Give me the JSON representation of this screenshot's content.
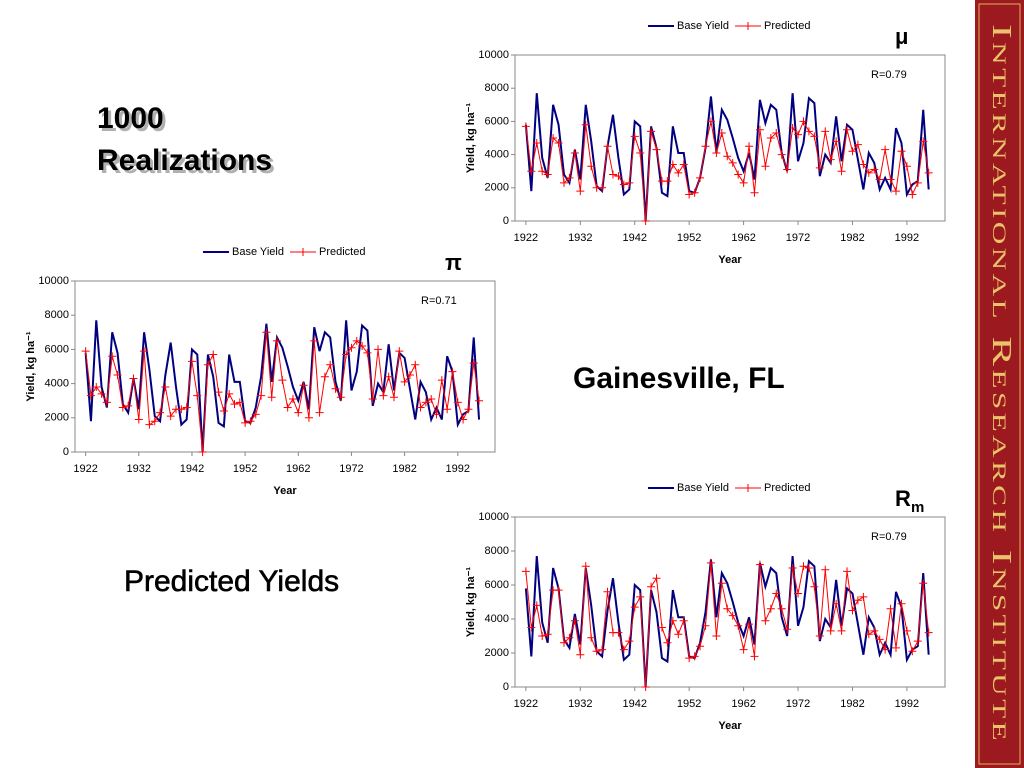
{
  "slide": {
    "heading": "1000 Realizations",
    "location": "Gainesville, FL",
    "caption": "Predicted Yields",
    "sidebar": "International Research Institute"
  },
  "chart_data": [
    {
      "type": "line",
      "symbol": "μ",
      "annotation": "R=0.79",
      "xlabel": "Year",
      "ylabel": "Yield, kg ha⁻¹",
      "xlim": [
        1920,
        1999
      ],
      "xticks": [
        1922,
        1932,
        1942,
        1952,
        1962,
        1972,
        1982,
        1992
      ],
      "ylim": [
        0,
        10000
      ],
      "yticks": [
        0,
        2000,
        4000,
        6000,
        8000,
        10000
      ],
      "x": [
        1922,
        1923,
        1924,
        1925,
        1926,
        1927,
        1928,
        1929,
        1930,
        1931,
        1932,
        1933,
        1934,
        1935,
        1936,
        1937,
        1938,
        1939,
        1940,
        1941,
        1942,
        1943,
        1944,
        1945,
        1946,
        1947,
        1948,
        1949,
        1950,
        1951,
        1952,
        1953,
        1954,
        1955,
        1956,
        1957,
        1958,
        1959,
        1960,
        1961,
        1962,
        1963,
        1964,
        1965,
        1966,
        1967,
        1968,
        1969,
        1970,
        1971,
        1972,
        1973,
        1974,
        1975,
        1976,
        1977,
        1978,
        1979,
        1980,
        1981,
        1982,
        1983,
        1984,
        1985,
        1986,
        1987,
        1988,
        1989,
        1990,
        1991,
        1992,
        1993,
        1994,
        1995,
        1996
      ],
      "series": [
        {
          "name": "Base Yield",
          "color": "#000080",
          "marker": "none",
          "values": [
            5800,
            1800,
            7700,
            3800,
            2600,
            7000,
            5800,
            2800,
            2300,
            4300,
            2500,
            7000,
            4800,
            2100,
            1800,
            4500,
            6400,
            3800,
            1600,
            1900,
            6000,
            5700,
            0,
            5700,
            4400,
            1700,
            1500,
            5700,
            4100,
            4100,
            1800,
            1700,
            2600,
            4400,
            7500,
            4100,
            6700,
            6100,
            5000,
            3800,
            3000,
            4100,
            2500,
            7300,
            5900,
            7000,
            6700,
            4100,
            3000,
            7700,
            3600,
            4700,
            7400,
            7100,
            2700,
            4000,
            3500,
            6300,
            3600,
            5800,
            5500,
            3700,
            1900,
            4100,
            3500,
            1900,
            2600,
            1900,
            5600,
            4700,
            1600,
            2200,
            2400,
            6700,
            1900
          ]
        },
        {
          "name": "Predicted",
          "color": "#ff0000",
          "marker": "plus",
          "values": [
            5700,
            3000,
            4700,
            3000,
            2800,
            5000,
            4700,
            2300,
            2600,
            4100,
            1800,
            5800,
            3300,
            2000,
            2000,
            4500,
            2800,
            2700,
            2200,
            2300,
            5100,
            4100,
            0,
            5400,
            4300,
            2400,
            2400,
            3400,
            2900,
            3400,
            1600,
            1700,
            2600,
            4500,
            6000,
            4100,
            5300,
            3900,
            3500,
            2800,
            2300,
            4500,
            1700,
            5500,
            3300,
            5000,
            5300,
            4000,
            3100,
            5600,
            5200,
            6000,
            5400,
            5100,
            3200,
            5400,
            3700,
            4800,
            3000,
            5500,
            4200,
            4600,
            3400,
            2900,
            3100,
            2500,
            4300,
            2500,
            1800,
            4200,
            3300,
            1600,
            2300,
            4800,
            2900
          ]
        }
      ]
    },
    {
      "type": "line",
      "symbol": "π",
      "annotation": "R=0.71",
      "xlabel": "Year",
      "ylabel": "Yield, kg ha⁻¹",
      "xlim": [
        1920,
        1999
      ],
      "xticks": [
        1922,
        1932,
        1942,
        1952,
        1962,
        1972,
        1982,
        1992
      ],
      "ylim": [
        0,
        10000
      ],
      "yticks": [
        0,
        2000,
        4000,
        6000,
        8000,
        10000
      ],
      "x": [
        1922,
        1923,
        1924,
        1925,
        1926,
        1927,
        1928,
        1929,
        1930,
        1931,
        1932,
        1933,
        1934,
        1935,
        1936,
        1937,
        1938,
        1939,
        1940,
        1941,
        1942,
        1943,
        1944,
        1945,
        1946,
        1947,
        1948,
        1949,
        1950,
        1951,
        1952,
        1953,
        1954,
        1955,
        1956,
        1957,
        1958,
        1959,
        1960,
        1961,
        1962,
        1963,
        1964,
        1965,
        1966,
        1967,
        1968,
        1969,
        1970,
        1971,
        1972,
        1973,
        1974,
        1975,
        1976,
        1977,
        1978,
        1979,
        1980,
        1981,
        1982,
        1983,
        1984,
        1985,
        1986,
        1987,
        1988,
        1989,
        1990,
        1991,
        1992,
        1993,
        1994,
        1995,
        1996
      ],
      "series": [
        {
          "name": "Base Yield",
          "color": "#000080",
          "marker": "none",
          "values": [
            5800,
            1800,
            7700,
            3800,
            2600,
            7000,
            5800,
            2800,
            2300,
            4300,
            2500,
            7000,
            4800,
            2100,
            1800,
            4500,
            6400,
            3800,
            1600,
            1900,
            6000,
            5700,
            0,
            5700,
            4400,
            1700,
            1500,
            5700,
            4100,
            4100,
            1800,
            1700,
            2600,
            4400,
            7500,
            4100,
            6700,
            6100,
            5000,
            3800,
            3000,
            4100,
            2500,
            7300,
            5900,
            7000,
            6700,
            4100,
            3000,
            7700,
            3600,
            4700,
            7400,
            7100,
            2700,
            4000,
            3500,
            6300,
            3600,
            5800,
            5500,
            3700,
            1900,
            4100,
            3500,
            1900,
            2600,
            1900,
            5600,
            4700,
            1600,
            2200,
            2400,
            6700,
            1900
          ]
        },
        {
          "name": "Predicted",
          "color": "#ff0000",
          "marker": "plus",
          "values": [
            5900,
            3300,
            3800,
            3400,
            2900,
            5600,
            4500,
            2600,
            2700,
            4300,
            1900,
            5900,
            1600,
            1800,
            2300,
            3800,
            2100,
            2500,
            2500,
            2600,
            5300,
            3300,
            0,
            5100,
            5700,
            3500,
            2400,
            3400,
            2800,
            2900,
            1700,
            1800,
            2200,
            3300,
            7000,
            3200,
            6500,
            4200,
            2600,
            3100,
            2300,
            3900,
            2000,
            6500,
            2300,
            4400,
            5100,
            3700,
            3200,
            5700,
            6100,
            6500,
            6200,
            5800,
            3100,
            6000,
            3300,
            4400,
            3200,
            5900,
            4100,
            4500,
            5100,
            2600,
            2900,
            3100,
            2200,
            4200,
            2500,
            4700,
            2900,
            1900,
            2500,
            5200,
            3000
          ]
        }
      ]
    },
    {
      "type": "line",
      "symbol": "R",
      "symbol_sub": "m",
      "annotation": "R=0.79",
      "xlabel": "Year",
      "ylabel": "Yield, kg ha⁻¹",
      "xlim": [
        1920,
        1999
      ],
      "xticks": [
        1922,
        1932,
        1942,
        1952,
        1962,
        1972,
        1982,
        1992
      ],
      "ylim": [
        0,
        10000
      ],
      "yticks": [
        0,
        2000,
        4000,
        6000,
        8000,
        10000
      ],
      "x": [
        1922,
        1923,
        1924,
        1925,
        1926,
        1927,
        1928,
        1929,
        1930,
        1931,
        1932,
        1933,
        1934,
        1935,
        1936,
        1937,
        1938,
        1939,
        1940,
        1941,
        1942,
        1943,
        1944,
        1945,
        1946,
        1947,
        1948,
        1949,
        1950,
        1951,
        1952,
        1953,
        1954,
        1955,
        1956,
        1957,
        1958,
        1959,
        1960,
        1961,
        1962,
        1963,
        1964,
        1965,
        1966,
        1967,
        1968,
        1969,
        1970,
        1971,
        1972,
        1973,
        1974,
        1975,
        1976,
        1977,
        1978,
        1979,
        1980,
        1981,
        1982,
        1983,
        1984,
        1985,
        1986,
        1987,
        1988,
        1989,
        1990,
        1991,
        1992,
        1993,
        1994,
        1995,
        1996
      ],
      "series": [
        {
          "name": "Base Yield",
          "color": "#000080",
          "marker": "none",
          "values": [
            5800,
            1800,
            7700,
            3800,
            2600,
            7000,
            5800,
            2800,
            2300,
            4300,
            2500,
            7000,
            4800,
            2100,
            1800,
            4500,
            6400,
            3800,
            1600,
            1900,
            6000,
            5700,
            0,
            5700,
            4400,
            1700,
            1500,
            5700,
            4100,
            4100,
            1800,
            1700,
            2600,
            4400,
            7500,
            4100,
            6700,
            6100,
            5000,
            3800,
            3000,
            4100,
            2500,
            7300,
            5900,
            7000,
            6700,
            4100,
            3000,
            7700,
            3600,
            4700,
            7400,
            7100,
            2700,
            4000,
            3500,
            6300,
            3600,
            5800,
            5500,
            3700,
            1900,
            4100,
            3500,
            1900,
            2600,
            1900,
            5600,
            4700,
            1600,
            2200,
            2400,
            6700,
            1900
          ]
        },
        {
          "name": "Predicted",
          "color": "#ff0000",
          "marker": "plus",
          "values": [
            6800,
            3500,
            4800,
            3000,
            3100,
            5700,
            5700,
            2600,
            2900,
            3900,
            1900,
            7100,
            2900,
            2100,
            2200,
            5600,
            3200,
            3200,
            2200,
            2700,
            4700,
            5300,
            0,
            5900,
            6400,
            3500,
            2600,
            3900,
            3100,
            3900,
            1700,
            1800,
            2400,
            3600,
            7300,
            3000,
            6100,
            4600,
            4200,
            3600,
            2200,
            3700,
            1800,
            7200,
            3900,
            4600,
            5500,
            4600,
            3400,
            7000,
            5500,
            7100,
            7000,
            5900,
            3000,
            6900,
            3300,
            4900,
            3300,
            6800,
            4500,
            5100,
            5300,
            3100,
            3300,
            2800,
            2200,
            4600,
            2300,
            4900,
            3300,
            2100,
            2700,
            6100,
            3200
          ]
        }
      ]
    }
  ]
}
